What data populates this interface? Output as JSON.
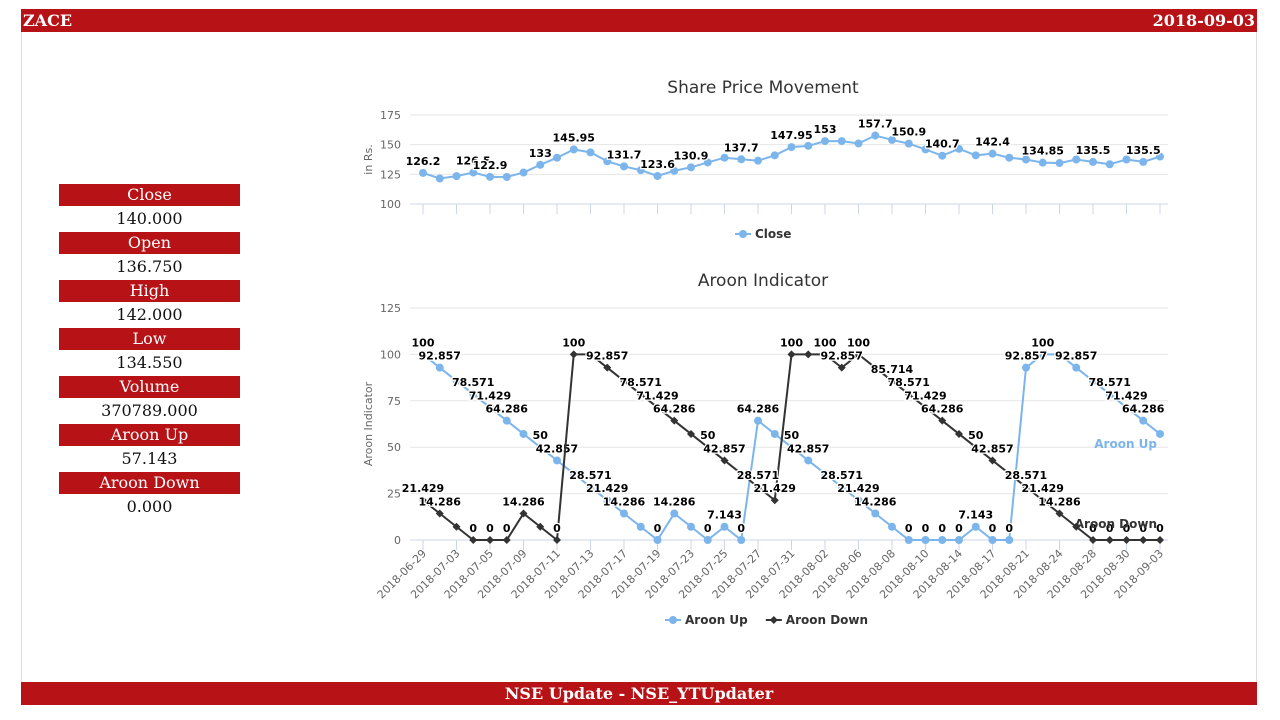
{
  "header": {
    "symbol": "ZACE",
    "date": "2018-09-03"
  },
  "footer": {
    "text": "NSE Update - NSE_YTUpdater"
  },
  "stats": [
    {
      "label": "Close",
      "value": "140.000"
    },
    {
      "label": "Open",
      "value": "136.750"
    },
    {
      "label": "High",
      "value": "142.000"
    },
    {
      "label": "Low",
      "value": "134.550"
    },
    {
      "label": "Volume",
      "value": "370789.000"
    },
    {
      "label": "Aroon Up",
      "value": "57.143"
    },
    {
      "label": "Aroon Down",
      "value": "0.000"
    }
  ],
  "colors": {
    "brand": "#b71216",
    "close": "#7cb5ec",
    "aroon_up": "#7cb5ec",
    "aroon_down": "#333333"
  },
  "chart_data": [
    {
      "type": "line",
      "title": "Share Price Movement",
      "ylabel": "in Rs.",
      "ylim": [
        100,
        175
      ],
      "yticks": [
        100,
        125,
        150,
        175
      ],
      "legend_placement": "bottom-center",
      "grid": true,
      "series": [
        {
          "name": "Close",
          "values": [
            126.2,
            121.5,
            123.5,
            126.5,
            122.9,
            122.8,
            126.5,
            133,
            139,
            145.95,
            143.5,
            136,
            131.7,
            128.5,
            123.6,
            128,
            130.9,
            135,
            139,
            137.7,
            136.5,
            141,
            147.95,
            149,
            153,
            153,
            151,
            157.7,
            154,
            150.9,
            146,
            140.7,
            146.5,
            141,
            142.4,
            139,
            137.5,
            134.85,
            134.5,
            137.5,
            135.5,
            133.5,
            137.5,
            135.5,
            140
          ],
          "labels": {
            "0": "126.2",
            "3": "126.5",
            "4": "122.9",
            "7": "133",
            "9": "145.95",
            "12": "131.7",
            "14": "123.6",
            "16": "130.9",
            "19": "137.7",
            "22": "147.95",
            "24": "153",
            "27": "157.7",
            "29": "150.9",
            "31": "140.7",
            "34": "142.4",
            "37": "134.85",
            "40": "135.5",
            "43": "135.5"
          }
        }
      ]
    },
    {
      "type": "line",
      "title": "Aroon Indicator",
      "ylabel": "Aroon Indicator",
      "ylim": [
        0,
        125
      ],
      "yticks": [
        0,
        25,
        50,
        75,
        100,
        125
      ],
      "legend_placement": "bottom-center",
      "grid": true,
      "x_tick_labels": [
        "2018-06-29",
        "2018-07-03",
        "2018-07-05",
        "2018-07-09",
        "2018-07-11",
        "2018-07-13",
        "2018-07-17",
        "2018-07-19",
        "2018-07-23",
        "2018-07-25",
        "2018-07-27",
        "2018-07-31",
        "2018-08-02",
        "2018-08-06",
        "2018-08-08",
        "2018-08-10",
        "2018-08-14",
        "2018-08-17",
        "2018-08-21",
        "2018-08-24",
        "2018-08-28",
        "2018-08-30",
        "2018-09-03"
      ],
      "series": [
        {
          "name": "Aroon Up",
          "end_label": "Aroon Up",
          "values": [
            100,
            92.857,
            85.714,
            78.571,
            71.429,
            64.286,
            57.143,
            50,
            42.857,
            35.714,
            28.571,
            21.429,
            14.286,
            7.143,
            0,
            14.286,
            7.143,
            0,
            7.143,
            0,
            64.286,
            57.143,
            50,
            42.857,
            35.714,
            28.571,
            21.429,
            14.286,
            7.143,
            0,
            0,
            0,
            0,
            7.143,
            0,
            0,
            92.857,
            100,
            100,
            92.857,
            85.714,
            78.571,
            71.429,
            64.286,
            57.143
          ],
          "labels": {
            "0": "100",
            "1": "92.857",
            "3": "78.571",
            "4": "71.429",
            "5": "64.286",
            "7": "50",
            "8": "42.857",
            "10": "28.571",
            "11": "21.429",
            "12": "14.286",
            "14": "0",
            "15": "14.286",
            "17": "0",
            "18": "7.143",
            "19": "0",
            "20": "64.286",
            "22": "50",
            "23": "42.857",
            "25": "28.571",
            "26": "21.429",
            "27": "14.286",
            "29": "0",
            "30": "0",
            "31": "0",
            "32": "0",
            "33": "7.143",
            "34": "0",
            "35": "0",
            "36": "92.857",
            "37": "100",
            "39": "92.857",
            "41": "78.571",
            "42": "71.429",
            "43": "64.286"
          }
        },
        {
          "name": "Aroon Down",
          "end_label": "Aroon Down",
          "values": [
            21.429,
            14.286,
            7.143,
            0,
            0,
            0,
            14.286,
            7.143,
            0,
            100,
            100,
            92.857,
            85.714,
            78.571,
            71.429,
            64.286,
            57.143,
            50,
            42.857,
            35.714,
            28.571,
            21.429,
            100,
            100,
            100,
            92.857,
            100,
            92.857,
            85.714,
            78.571,
            71.429,
            64.286,
            57.143,
            50,
            42.857,
            35.714,
            28.571,
            21.429,
            14.286,
            7.143,
            0,
            0,
            0,
            0,
            0
          ],
          "labels": {
            "0": "21.429",
            "1": "14.286",
            "3": "0",
            "4": "0",
            "5": "0",
            "6": "14.286",
            "8": "0",
            "9": "100",
            "11": "92.857",
            "13": "78.571",
            "14": "71.429",
            "15": "64.286",
            "17": "50",
            "18": "42.857",
            "20": "28.571",
            "21": "21.429",
            "22": "100",
            "24": "100",
            "25": "92.857",
            "26": "100",
            "28": "85.714",
            "29": "78.571",
            "30": "71.429",
            "31": "64.286",
            "33": "50",
            "34": "42.857",
            "36": "28.571",
            "37": "21.429",
            "38": "14.286",
            "40": "0",
            "41": "0",
            "42": "0",
            "43": "0",
            "44": "0"
          }
        }
      ]
    }
  ]
}
